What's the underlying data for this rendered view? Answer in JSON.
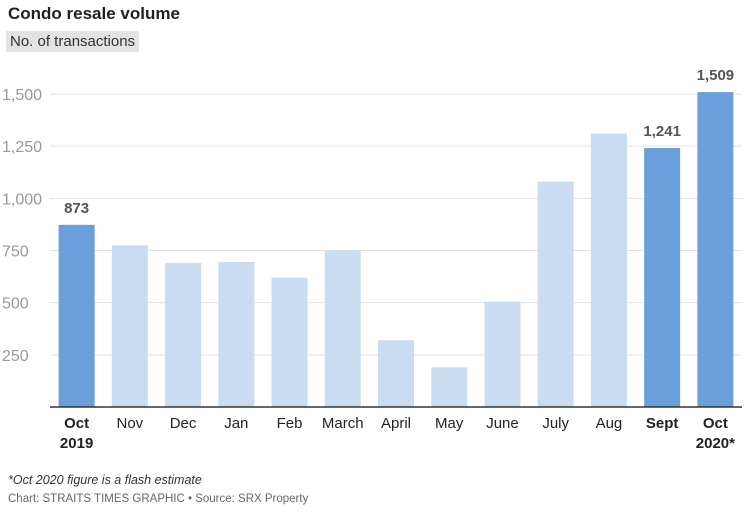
{
  "header": {
    "title": "Condo resale volume",
    "subtitle": "No. of transactions"
  },
  "colors": {
    "highlight": "#6a9fdb",
    "normal": "#c9dcf2",
    "grid": "#e2e2e2",
    "axis": "#333333",
    "tick_text": "#999999",
    "value_label": "#555555"
  },
  "chart_data": {
    "type": "bar",
    "title": "Condo resale volume",
    "subtitle": "No. of transactions",
    "xlabel": "",
    "ylabel": "",
    "ylim": [
      0,
      1500
    ],
    "yticks": [
      250,
      500,
      750,
      1000,
      1250,
      1500
    ],
    "ytick_labels": [
      "250",
      "500",
      "750",
      "1,000",
      "1,250",
      "1,500"
    ],
    "grid": true,
    "categories": [
      [
        "Oct",
        "2019"
      ],
      [
        "Nov"
      ],
      [
        "Dec"
      ],
      [
        "Jan"
      ],
      [
        "Feb"
      ],
      [
        "March"
      ],
      [
        "April"
      ],
      [
        "May"
      ],
      [
        "June"
      ],
      [
        "July"
      ],
      [
        "Aug"
      ],
      [
        "Sept"
      ],
      [
        "Oct",
        "2020*"
      ]
    ],
    "values": [
      873,
      775,
      690,
      695,
      620,
      750,
      320,
      190,
      505,
      1080,
      1310,
      1241,
      1509
    ],
    "highlighted": [
      true,
      false,
      false,
      false,
      false,
      false,
      false,
      false,
      false,
      false,
      false,
      true,
      true
    ],
    "data_labels": [
      "873",
      "",
      "",
      "",
      "",
      "",
      "",
      "",
      "",
      "",
      "",
      "1,241",
      "1,509"
    ]
  },
  "footer": {
    "footnote": "*Oct 2020 figure is a flash estimate",
    "credit": "Chart: STRAITS TIMES GRAPHIC • Source: SRX Property"
  }
}
